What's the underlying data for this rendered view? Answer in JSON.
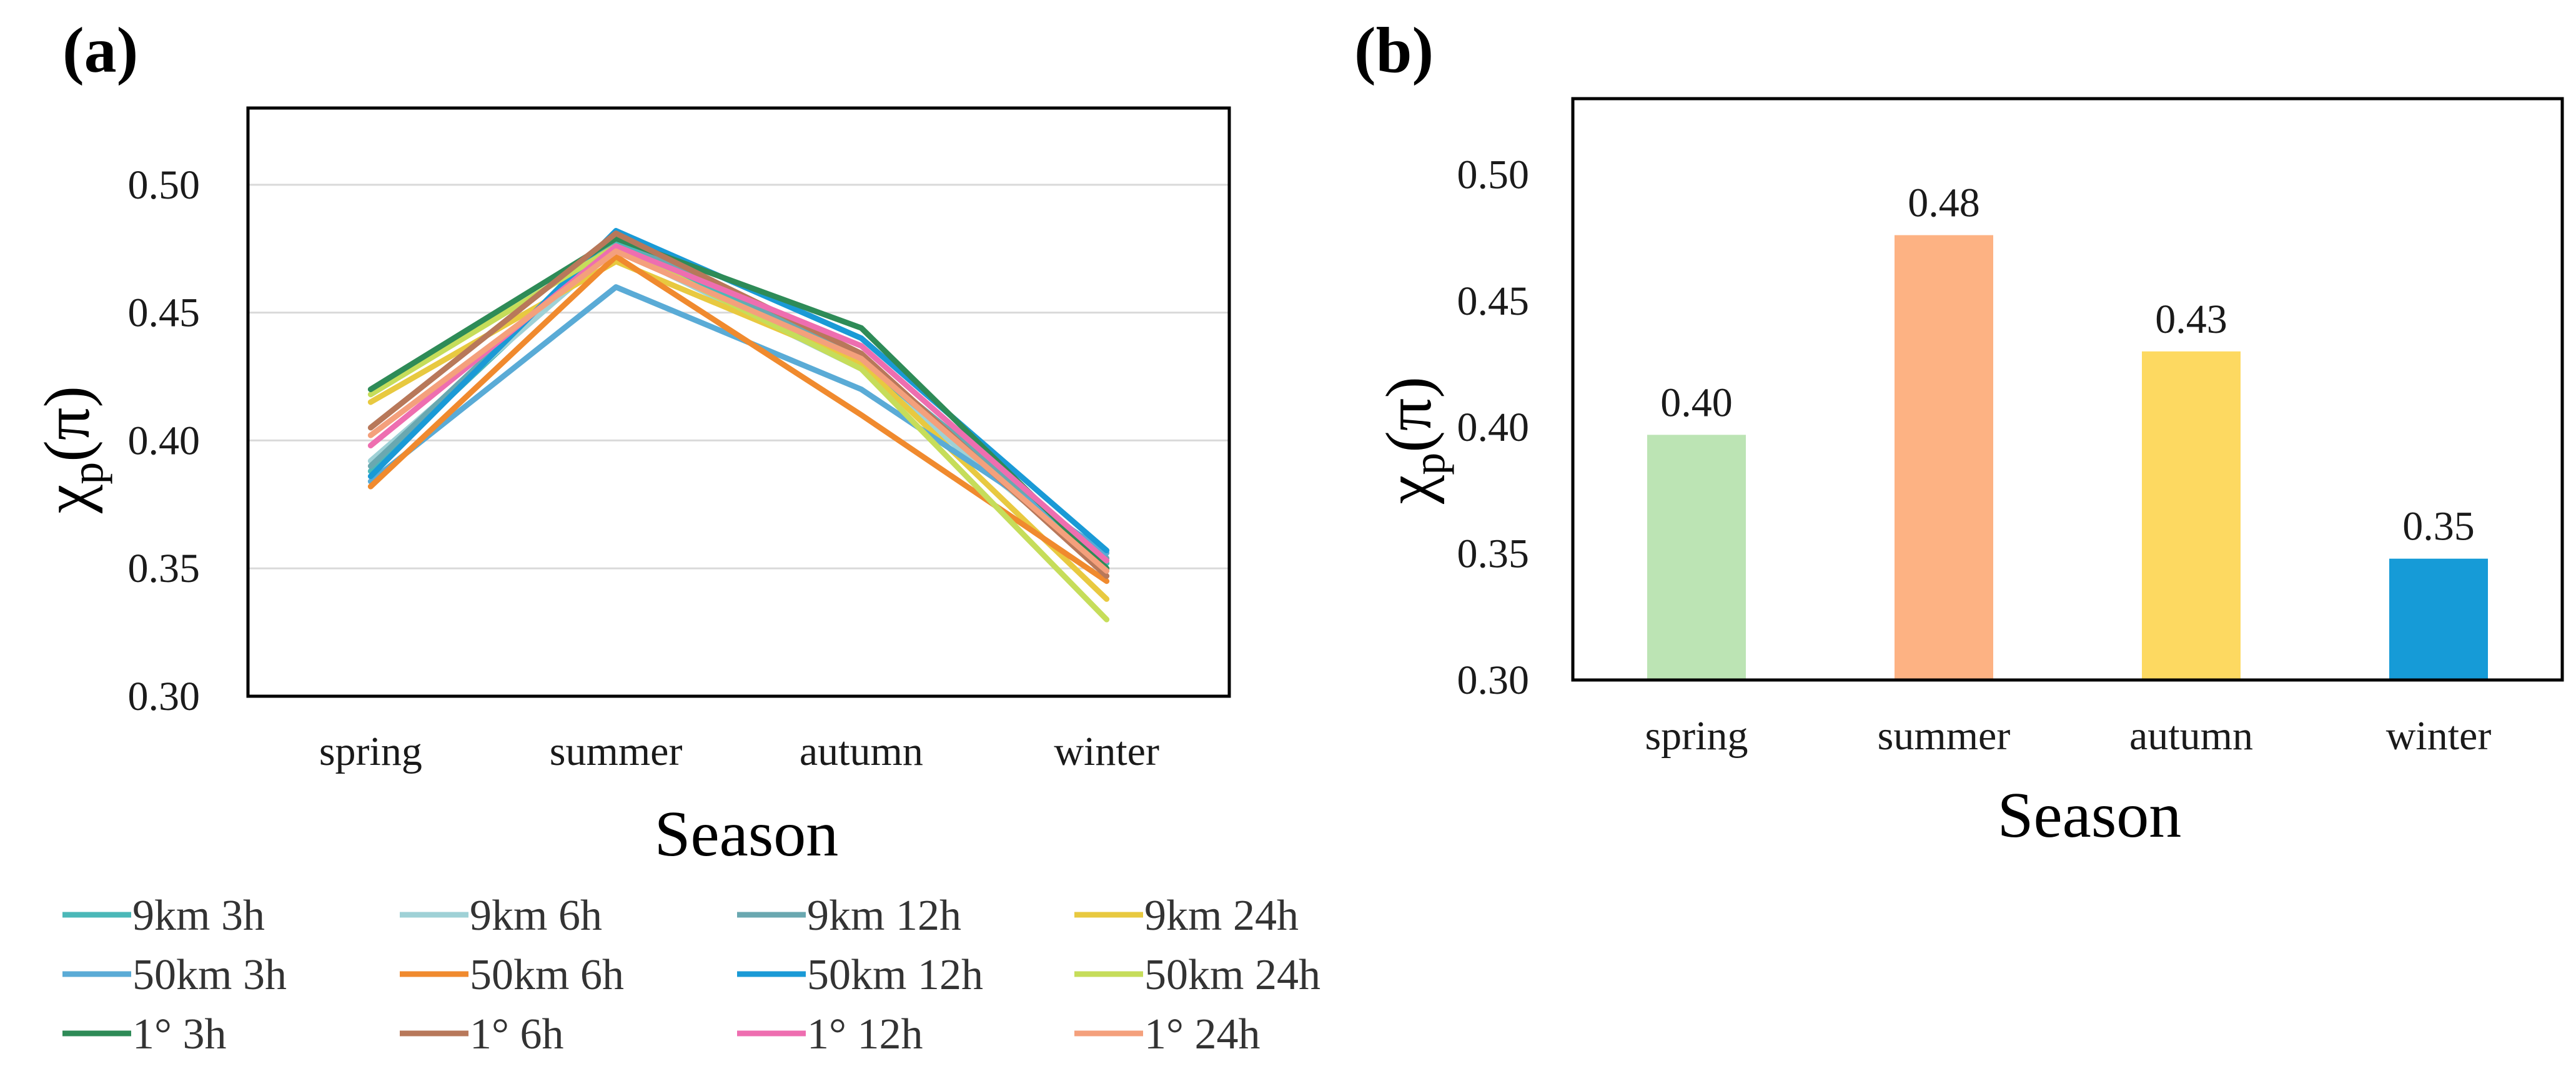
{
  "panel_a_label": "(a)",
  "panel_b_label": "(b)",
  "chart_data": [
    {
      "type": "line",
      "title": "",
      "xlabel": "Season",
      "ylabel": "χp(π)",
      "ylim": [
        0.3,
        0.53
      ],
      "yticks": [
        "0.30",
        "0.35",
        "0.40",
        "0.45",
        "0.50"
      ],
      "categories": [
        "spring",
        "summer",
        "autumn",
        "winter"
      ],
      "series": [
        {
          "name": "9km 3h",
          "color": "#4bb8b8",
          "values": [
            0.388,
            0.478,
            0.43,
            0.352
          ]
        },
        {
          "name": "9km 6h",
          "color": "#9fd1d6",
          "values": [
            0.392,
            0.475,
            0.428,
            0.35
          ]
        },
        {
          "name": "9km 12h",
          "color": "#6aa8b0",
          "values": [
            0.39,
            0.48,
            0.432,
            0.354
          ]
        },
        {
          "name": "9km 24h",
          "color": "#e8c940",
          "values": [
            0.415,
            0.47,
            0.43,
            0.338
          ]
        },
        {
          "name": "50km 3h",
          "color": "#5aabd6",
          "values": [
            0.384,
            0.46,
            0.42,
            0.356
          ]
        },
        {
          "name": "50km 6h",
          "color": "#f08a2e",
          "values": [
            0.382,
            0.472,
            0.41,
            0.345
          ]
        },
        {
          "name": "50km 12h",
          "color": "#1a9ad6",
          "values": [
            0.386,
            0.482,
            0.44,
            0.357
          ]
        },
        {
          "name": "50km 24h",
          "color": "#c6dd5a",
          "values": [
            0.418,
            0.476,
            0.428,
            0.33
          ]
        },
        {
          "name": "1° 3h",
          "color": "#2e8b57",
          "values": [
            0.42,
            0.479,
            0.444,
            0.35
          ]
        },
        {
          "name": "1° 6h",
          "color": "#b8785a",
          "values": [
            0.405,
            0.481,
            0.434,
            0.347
          ]
        },
        {
          "name": "1° 12h",
          "color": "#ee6eb0",
          "values": [
            0.398,
            0.476,
            0.437,
            0.353
          ]
        },
        {
          "name": "1° 24h",
          "color": "#f4a07c",
          "values": [
            0.402,
            0.474,
            0.432,
            0.349
          ]
        }
      ],
      "legend_position": "bottom"
    },
    {
      "type": "bar",
      "title": "",
      "xlabel": "Season",
      "ylabel": "χp(π)",
      "ylim": [
        0.3,
        0.53
      ],
      "yticks": [
        "0.30",
        "0.35",
        "0.40",
        "0.45",
        "0.50"
      ],
      "categories": [
        "spring",
        "summer",
        "autumn",
        "winter"
      ],
      "values": [
        0.397,
        0.476,
        0.43,
        0.348
      ],
      "data_labels": [
        "0.40",
        "0.48",
        "0.43",
        "0.35"
      ],
      "colors": [
        "#bce4b4",
        "#fdb283",
        "#fdd961",
        "#169bd7"
      ]
    }
  ]
}
